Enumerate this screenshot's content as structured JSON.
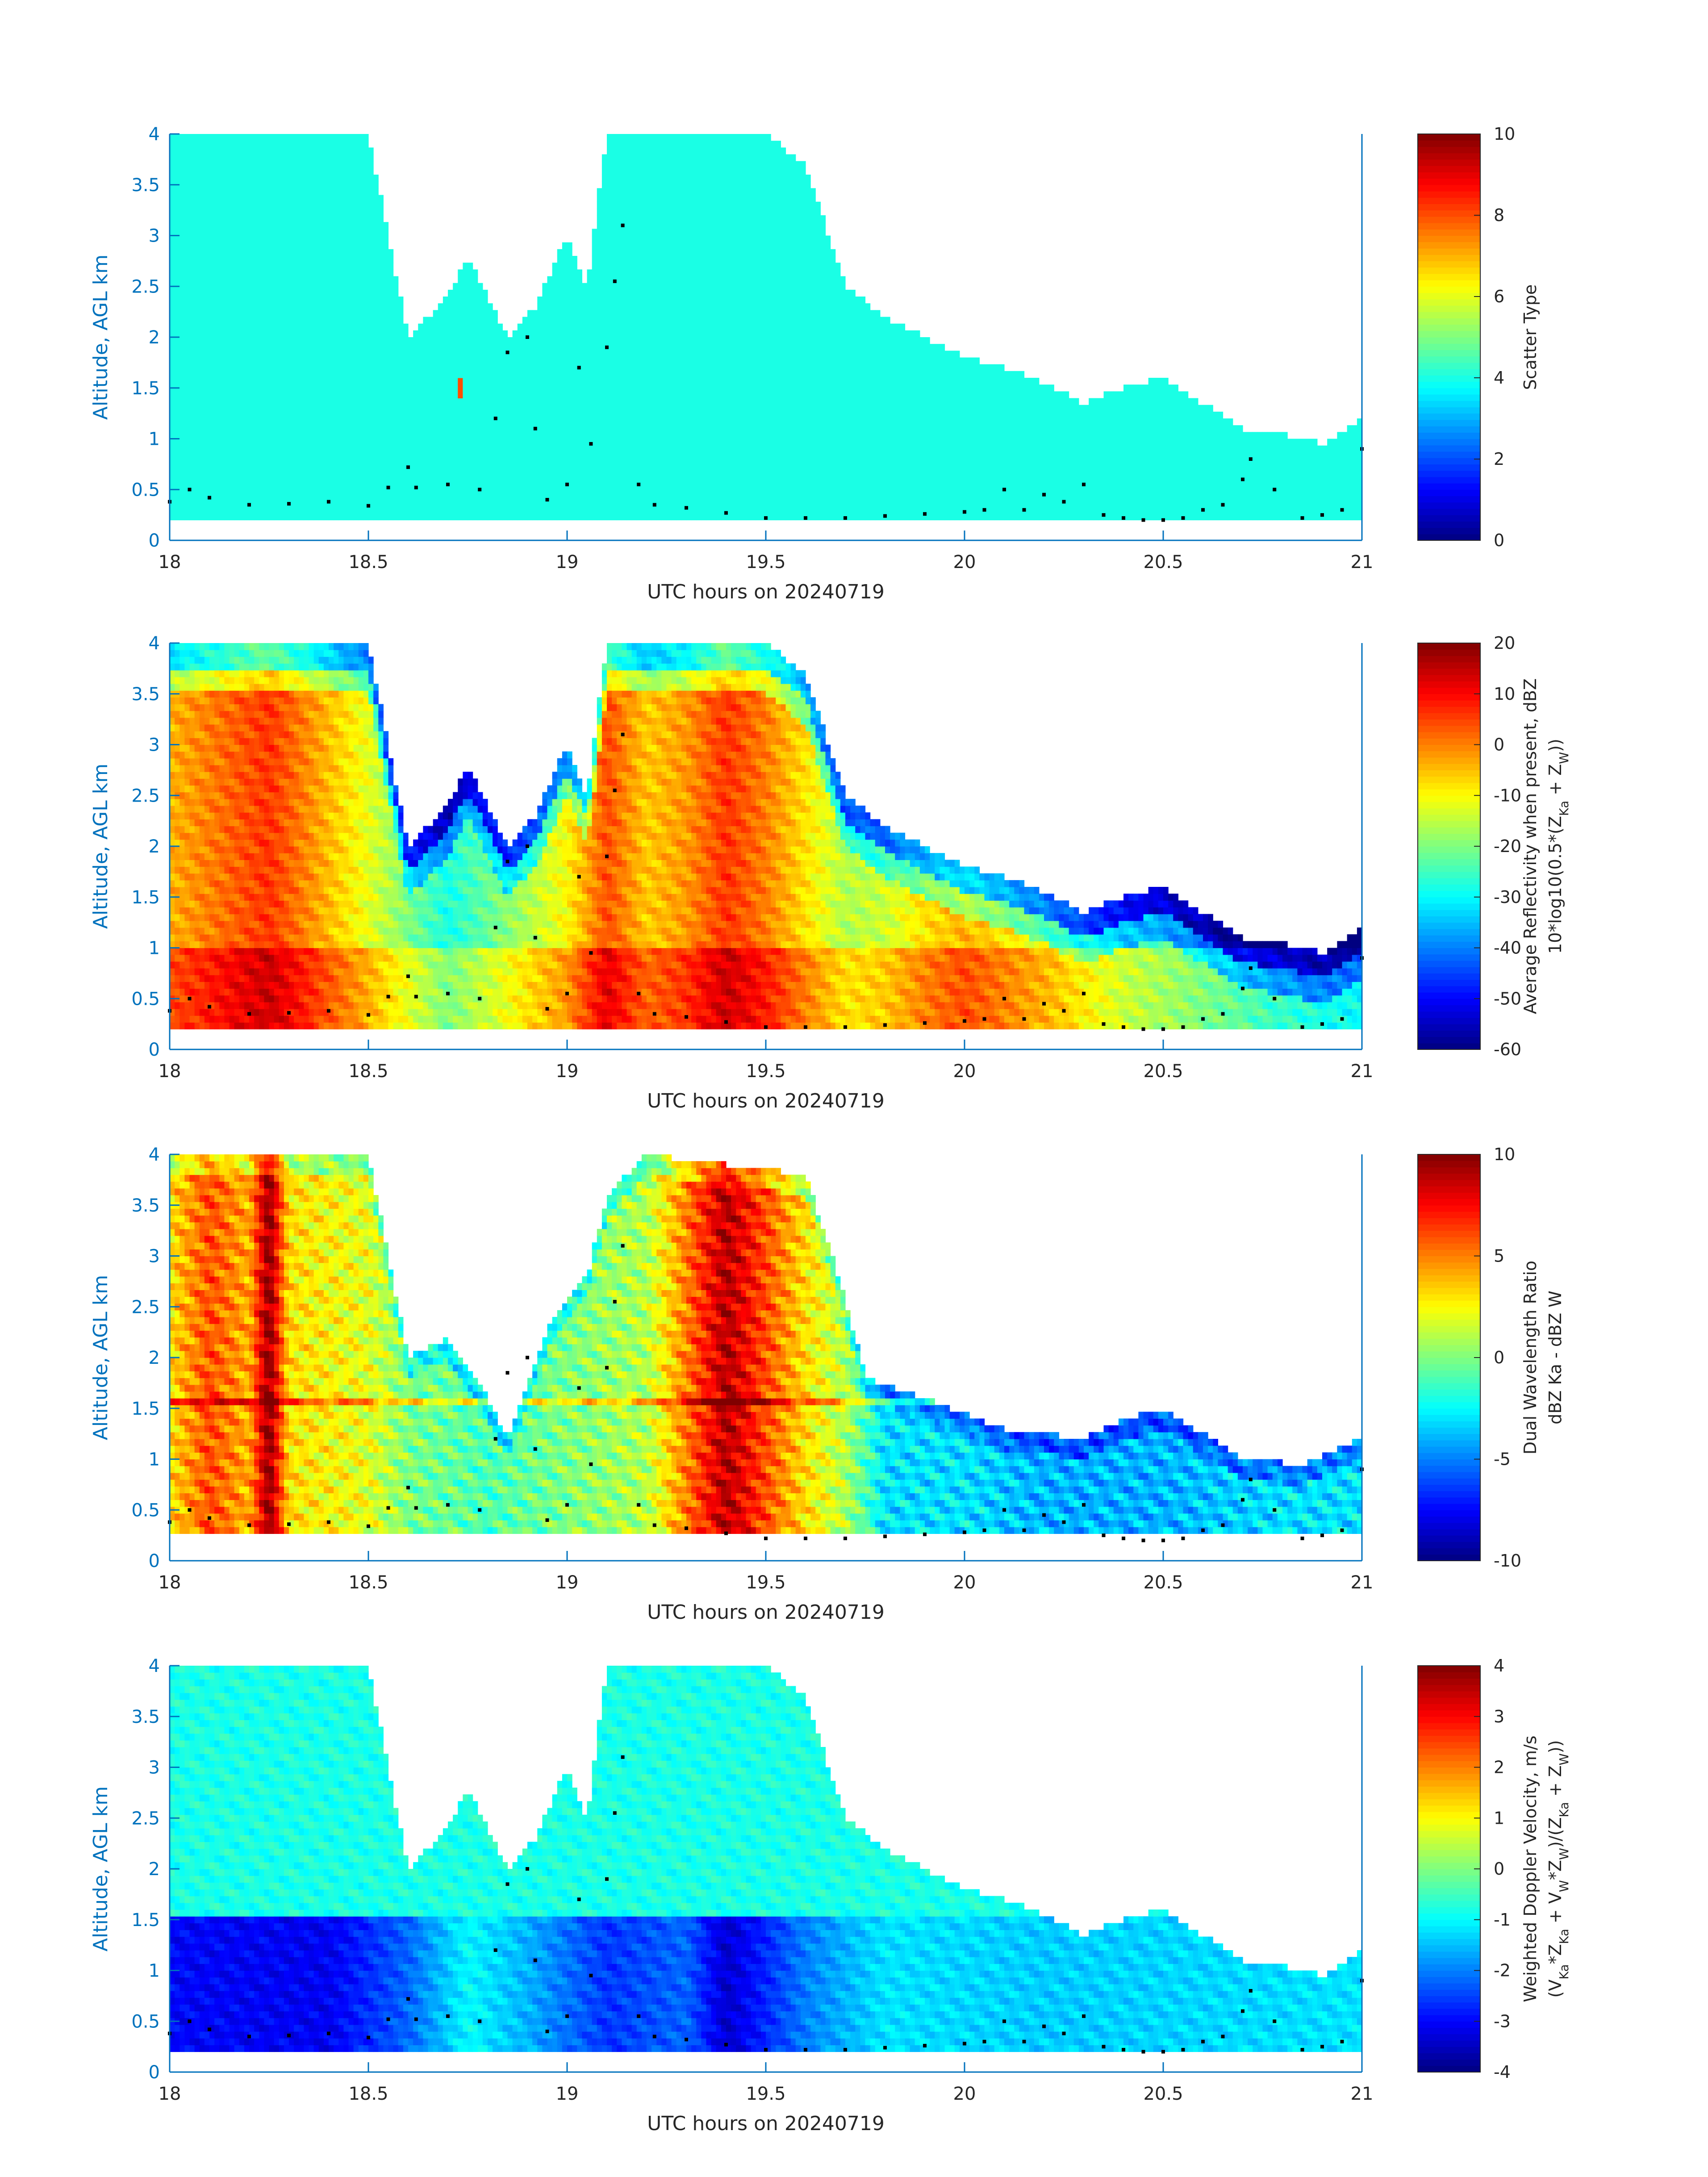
{
  "figure": {
    "background": "#ffffff",
    "axis_color": "#0072bd",
    "tick_text_color": "#262626",
    "overpass_marker_color": "#000000",
    "colormap": "jet"
  },
  "chart_data": [
    {
      "type": "heatmap",
      "id": "scatter-type",
      "xlabel": "UTC hours on 20240719",
      "ylabel": "Altitude, AGL km",
      "xlim": [
        18,
        21
      ],
      "ylim": [
        0,
        4
      ],
      "xticks": [
        "18",
        "18.5",
        "19",
        "19.5",
        "20",
        "20.5",
        "21"
      ],
      "yticks": [
        "0",
        "0.5",
        "1",
        "1.5",
        "2",
        "2.5",
        "3",
        "3.5",
        "4"
      ],
      "colorbar": {
        "label_lines": [
          "Scatter Type"
        ],
        "range": [
          0,
          10
        ],
        "ticks": [
          "0",
          "2",
          "4",
          "6",
          "8",
          "10"
        ]
      },
      "dominant_value": 4,
      "patches": [
        {
          "x": [
            18.72,
            18.74
          ],
          "y": [
            1.42,
            1.58
          ],
          "value": 8
        }
      ],
      "cloud_top_km": [
        [
          18.0,
          4.0
        ],
        [
          18.5,
          4.0
        ],
        [
          18.6,
          2.0
        ],
        [
          18.7,
          2.4
        ],
        [
          18.75,
          2.8
        ],
        [
          18.85,
          2.0
        ],
        [
          18.92,
          2.3
        ],
        [
          19.0,
          3.0
        ],
        [
          19.05,
          2.5
        ],
        [
          19.1,
          4.0
        ],
        [
          19.5,
          4.0
        ],
        [
          19.6,
          3.7
        ],
        [
          19.7,
          2.5
        ],
        [
          19.8,
          2.2
        ],
        [
          19.9,
          2.0
        ],
        [
          20.0,
          1.8
        ],
        [
          20.1,
          1.7
        ],
        [
          20.2,
          1.55
        ],
        [
          20.3,
          1.35
        ],
        [
          20.4,
          1.5
        ],
        [
          20.5,
          1.6
        ],
        [
          20.6,
          1.35
        ],
        [
          20.7,
          1.1
        ],
        [
          20.8,
          1.05
        ],
        [
          20.9,
          0.95
        ],
        [
          21.0,
          1.2
        ]
      ],
      "cloud_base_km": 0.2
    },
    {
      "type": "heatmap",
      "id": "average-reflectivity",
      "xlabel": "UTC hours on 20240719",
      "ylabel": "Altitude, AGL km",
      "xlim": [
        18,
        21
      ],
      "ylim": [
        0,
        4
      ],
      "xticks": [
        "18",
        "18.5",
        "19",
        "19.5",
        "20",
        "20.5",
        "21"
      ],
      "yticks": [
        "0",
        "0.5",
        "1",
        "1.5",
        "2",
        "2.5",
        "3",
        "3.5",
        "4"
      ],
      "colorbar": {
        "label_lines": [
          "Average Reflectivity when present, dBZ",
          "10*log10(0.5*(Z_Ka + Z_W))"
        ],
        "range": [
          -60,
          20
        ],
        "ticks": [
          "-60",
          "-50",
          "-40",
          "-30",
          "-20",
          "-10",
          "0",
          "10",
          "20"
        ]
      },
      "field_profile": [
        [
          18.0,
          -4
        ],
        [
          18.25,
          6
        ],
        [
          18.5,
          -12
        ],
        [
          18.6,
          -20
        ],
        [
          18.7,
          -28
        ],
        [
          18.8,
          -22
        ],
        [
          18.9,
          -16
        ],
        [
          19.0,
          -10
        ],
        [
          19.1,
          4
        ],
        [
          19.2,
          -6
        ],
        [
          19.3,
          -2
        ],
        [
          19.4,
          6
        ],
        [
          19.5,
          0
        ],
        [
          19.6,
          -8
        ],
        [
          19.7,
          -16
        ],
        [
          19.8,
          -14
        ],
        [
          19.9,
          -8
        ],
        [
          20.0,
          -4
        ],
        [
          20.2,
          -12
        ],
        [
          20.4,
          -22
        ],
        [
          20.6,
          -28
        ],
        [
          20.8,
          -34
        ],
        [
          21.0,
          -38
        ]
      ],
      "cloud_top_km": [
        [
          18.0,
          4.0
        ],
        [
          18.5,
          4.0
        ],
        [
          18.6,
          2.0
        ],
        [
          18.7,
          2.4
        ],
        [
          18.75,
          2.8
        ],
        [
          18.85,
          2.0
        ],
        [
          18.92,
          2.3
        ],
        [
          19.0,
          3.0
        ],
        [
          19.05,
          2.5
        ],
        [
          19.1,
          4.0
        ],
        [
          19.5,
          4.0
        ],
        [
          19.6,
          3.7
        ],
        [
          19.7,
          2.5
        ],
        [
          19.8,
          2.2
        ],
        [
          19.9,
          2.0
        ],
        [
          20.0,
          1.8
        ],
        [
          20.1,
          1.7
        ],
        [
          20.2,
          1.55
        ],
        [
          20.3,
          1.35
        ],
        [
          20.4,
          1.5
        ],
        [
          20.5,
          1.6
        ],
        [
          20.6,
          1.35
        ],
        [
          20.7,
          1.1
        ],
        [
          20.8,
          1.05
        ],
        [
          20.9,
          0.95
        ],
        [
          21.0,
          1.2
        ]
      ],
      "cloud_base_km": 0.2
    },
    {
      "type": "heatmap",
      "id": "dual-wavelength-ratio",
      "xlabel": "UTC hours on 20240719",
      "ylabel": "Altitude, AGL km",
      "xlim": [
        18,
        21
      ],
      "ylim": [
        0,
        4
      ],
      "xticks": [
        "18",
        "18.5",
        "19",
        "19.5",
        "20",
        "20.5",
        "21"
      ],
      "yticks": [
        "0",
        "0.5",
        "1",
        "1.5",
        "2",
        "2.5",
        "3",
        "3.5",
        "4"
      ],
      "colorbar": {
        "label_lines": [
          "Dual Wavelength Ratio",
          "dBZ Ka - dBZ W"
        ],
        "range": [
          -10,
          10
        ],
        "ticks": [
          "-10",
          "-5",
          "0",
          "5",
          "10"
        ]
      },
      "field_profile": [
        [
          18.0,
          3
        ],
        [
          18.1,
          6
        ],
        [
          18.2,
          4
        ],
        [
          18.25,
          10
        ],
        [
          18.3,
          3
        ],
        [
          18.5,
          2
        ],
        [
          18.6,
          0
        ],
        [
          18.8,
          -1
        ],
        [
          19.0,
          0
        ],
        [
          19.2,
          1
        ],
        [
          19.3,
          5
        ],
        [
          19.4,
          9
        ],
        [
          19.5,
          6
        ],
        [
          19.6,
          3
        ],
        [
          19.7,
          1
        ],
        [
          19.8,
          -3
        ],
        [
          20.0,
          -3
        ],
        [
          20.2,
          -4
        ],
        [
          20.5,
          -4
        ],
        [
          20.8,
          -3
        ],
        [
          21.0,
          -3
        ]
      ],
      "cloud_top_km": [
        [
          18.0,
          4.0
        ],
        [
          18.5,
          4.0
        ],
        [
          18.6,
          2.0
        ],
        [
          18.7,
          2.2
        ],
        [
          18.8,
          1.6
        ],
        [
          18.85,
          1.2
        ],
        [
          18.95,
          2.3
        ],
        [
          19.05,
          2.8
        ],
        [
          19.1,
          3.6
        ],
        [
          19.2,
          4.0
        ],
        [
          19.6,
          3.8
        ],
        [
          19.7,
          2.6
        ],
        [
          19.75,
          1.8
        ],
        [
          19.9,
          1.6
        ],
        [
          20.1,
          1.3
        ],
        [
          20.3,
          1.2
        ],
        [
          20.4,
          1.4
        ],
        [
          20.5,
          1.5
        ],
        [
          20.6,
          1.25
        ],
        [
          20.7,
          1.0
        ],
        [
          20.85,
          0.95
        ],
        [
          21.0,
          1.2
        ]
      ],
      "cloud_base_km": 0.28
    },
    {
      "type": "heatmap",
      "id": "weighted-doppler-velocity",
      "xlabel": "UTC hours on 20240719",
      "ylabel": "Altitude, AGL km",
      "xlim": [
        18,
        21
      ],
      "ylim": [
        0,
        4
      ],
      "xticks": [
        "18",
        "18.5",
        "19",
        "19.5",
        "20",
        "20.5",
        "21"
      ],
      "yticks": [
        "0",
        "0.5",
        "1",
        "1.5",
        "2",
        "2.5",
        "3",
        "3.5",
        "4"
      ],
      "colorbar": {
        "label_lines": [
          "Weighted Doppler Velocity, m/s",
          "(V_Ka*Z_Ka + V_W*Z_W)/(Z_Ka + Z_W))"
        ],
        "range": [
          -4,
          4
        ],
        "ticks": [
          "-4",
          "-3",
          "-2",
          "-1",
          "0",
          "1",
          "2",
          "3",
          "4"
        ]
      },
      "upper_value": -0.8,
      "lower_profile": [
        [
          18.0,
          -3.0
        ],
        [
          18.4,
          -3.1
        ],
        [
          18.6,
          -2.2
        ],
        [
          18.75,
          -1.0
        ],
        [
          18.9,
          -1.6
        ],
        [
          19.1,
          -2.6
        ],
        [
          19.3,
          -2.2
        ],
        [
          19.4,
          -3.4
        ],
        [
          19.6,
          -2.0
        ],
        [
          19.8,
          -1.2
        ],
        [
          20.2,
          -1.4
        ],
        [
          20.6,
          -1.3
        ],
        [
          21.0,
          -1.2
        ]
      ],
      "cloud_top_km": [
        [
          18.0,
          4.0
        ],
        [
          18.5,
          4.0
        ],
        [
          18.6,
          2.0
        ],
        [
          18.7,
          2.4
        ],
        [
          18.75,
          2.8
        ],
        [
          18.85,
          2.0
        ],
        [
          18.92,
          2.3
        ],
        [
          19.0,
          3.0
        ],
        [
          19.05,
          2.5
        ],
        [
          19.1,
          4.0
        ],
        [
          19.5,
          4.0
        ],
        [
          19.6,
          3.7
        ],
        [
          19.7,
          2.5
        ],
        [
          19.8,
          2.2
        ],
        [
          19.9,
          2.0
        ],
        [
          20.0,
          1.8
        ],
        [
          20.1,
          1.7
        ],
        [
          20.2,
          1.55
        ],
        [
          20.3,
          1.35
        ],
        [
          20.4,
          1.5
        ],
        [
          20.5,
          1.6
        ],
        [
          20.6,
          1.35
        ],
        [
          20.7,
          1.1
        ],
        [
          20.8,
          1.05
        ],
        [
          20.9,
          0.95
        ],
        [
          21.0,
          1.2
        ]
      ],
      "cloud_base_km": 0.2
    }
  ],
  "overpass_track_km": [
    [
      18.0,
      0.38
    ],
    [
      18.05,
      0.5
    ],
    [
      18.1,
      0.42
    ],
    [
      18.2,
      0.35
    ],
    [
      18.3,
      0.36
    ],
    [
      18.4,
      0.38
    ],
    [
      18.5,
      0.34
    ],
    [
      18.55,
      0.52
    ],
    [
      18.6,
      0.72
    ],
    [
      18.62,
      0.52
    ],
    [
      18.7,
      0.55
    ],
    [
      18.78,
      0.5
    ],
    [
      18.82,
      1.2
    ],
    [
      18.85,
      1.85
    ],
    [
      18.9,
      2.0
    ],
    [
      18.92,
      1.1
    ],
    [
      18.95,
      0.4
    ],
    [
      19.0,
      0.55
    ],
    [
      19.03,
      1.7
    ],
    [
      19.06,
      0.95
    ],
    [
      19.1,
      1.9
    ],
    [
      19.12,
      2.55
    ],
    [
      19.14,
      3.1
    ],
    [
      19.18,
      0.55
    ],
    [
      19.22,
      0.35
    ],
    [
      19.3,
      0.32
    ],
    [
      19.4,
      0.27
    ],
    [
      19.5,
      0.22
    ],
    [
      19.6,
      0.22
    ],
    [
      19.7,
      0.22
    ],
    [
      19.8,
      0.24
    ],
    [
      19.9,
      0.26
    ],
    [
      20.0,
      0.28
    ],
    [
      20.05,
      0.3
    ],
    [
      20.1,
      0.5
    ],
    [
      20.15,
      0.3
    ],
    [
      20.2,
      0.45
    ],
    [
      20.25,
      0.38
    ],
    [
      20.3,
      0.55
    ],
    [
      20.35,
      0.25
    ],
    [
      20.4,
      0.22
    ],
    [
      20.45,
      0.2
    ],
    [
      20.5,
      0.2
    ],
    [
      20.55,
      0.22
    ],
    [
      20.6,
      0.3
    ],
    [
      20.65,
      0.35
    ],
    [
      20.7,
      0.6
    ],
    [
      20.72,
      0.8
    ],
    [
      20.78,
      0.5
    ],
    [
      20.85,
      0.22
    ],
    [
      20.9,
      0.25
    ],
    [
      20.95,
      0.3
    ],
    [
      21.0,
      0.9
    ]
  ]
}
